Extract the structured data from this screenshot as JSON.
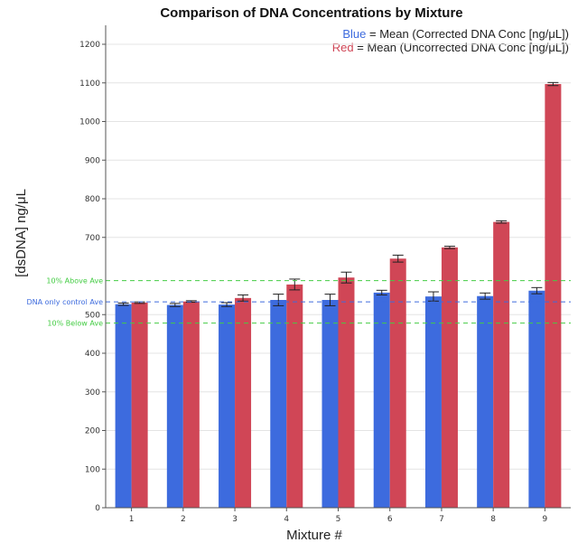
{
  "chart_data": {
    "type": "bar",
    "title": "Comparison of DNA Concentrations by Mixture",
    "xlabel": "Mixture #",
    "ylabel": "[dsDNA] ng/μL",
    "ylim": [
      0,
      1250
    ],
    "yticks": [
      0,
      100,
      200,
      300,
      400,
      500,
      700,
      800,
      900,
      1000,
      1100,
      1200
    ],
    "categories": [
      "1",
      "2",
      "3",
      "4",
      "5",
      "6",
      "7",
      "8",
      "9"
    ],
    "series": [
      {
        "name": "Mean (Corrected DNA Conc [ng/μL])",
        "color": "#3d6bde",
        "values": [
          527,
          525,
          526,
          538,
          538,
          557,
          547,
          548,
          562
        ],
        "errors": [
          3,
          4,
          5,
          15,
          15,
          6,
          12,
          8,
          8
        ]
      },
      {
        "name": "Mean (Uncorrected DNA Conc [ng/μL])",
        "color": "#d04656",
        "values": [
          531,
          534,
          543,
          578,
          596,
          645,
          674,
          740,
          1097
        ],
        "errors": [
          2,
          2,
          8,
          14,
          14,
          9,
          3,
          3,
          4
        ]
      }
    ],
    "legend": {
      "position": "top-right",
      "entries": [
        {
          "color_word": "Blue",
          "color": "#3d6bde",
          "text": "= Mean (Corrected DNA Conc [ng/μL])"
        },
        {
          "color_word": "Red",
          "color": "#d04656",
          "text": "= Mean (Uncorrected DNA Conc [ng/μL])"
        }
      ]
    },
    "reference_lines": [
      {
        "label": "10% Above Ave",
        "value": 588,
        "color": "#44cc44"
      },
      {
        "label": "DNA only control Ave",
        "value": 533,
        "color": "#3d6bde"
      },
      {
        "label": "10% Below Ave",
        "value": 478,
        "color": "#44cc44"
      }
    ]
  }
}
